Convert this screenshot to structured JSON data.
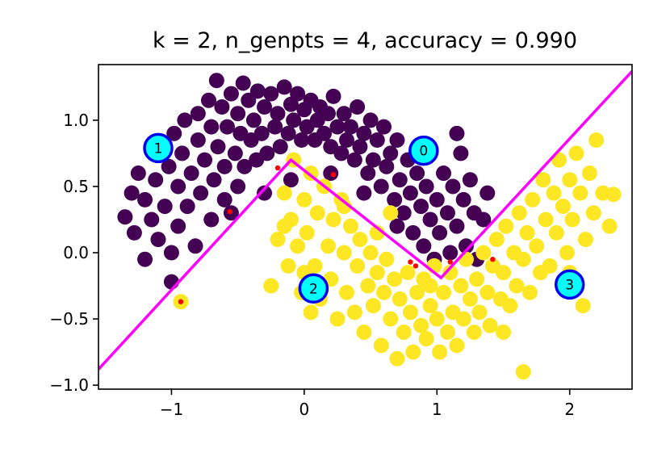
{
  "chart_data": {
    "type": "scatter",
    "title": "k = 2, n_genpts = 4, accuracy = 0.990",
    "xlabel": "",
    "ylabel": "",
    "xlim": [
      -1.55,
      2.47
    ],
    "ylim": [
      -1.03,
      1.42
    ],
    "xticks": [
      -1,
      0,
      1,
      2
    ],
    "xtick_labels": [
      "−1",
      "0",
      "1",
      "2"
    ],
    "yticks": [
      -1.0,
      -0.5,
      0.0,
      0.5,
      1.0
    ],
    "ytick_labels": [
      "−1.0",
      "−0.5",
      "0.0",
      "0.5",
      "1.0"
    ],
    "grid": false,
    "colors": {
      "class0": "#440154",
      "class1": "#fde725",
      "boundary": "#ff00ff",
      "generator_fill": "#00ffff",
      "generator_edge": "#0000ee",
      "misclassified": "#ff0000"
    },
    "classes": [
      {
        "name": "0",
        "color": "#440154",
        "points": [
          [
            -1.35,
            0.27
          ],
          [
            -1.3,
            0.45
          ],
          [
            -1.28,
            0.15
          ],
          [
            -1.25,
            0.6
          ],
          [
            -1.2,
            0.4
          ],
          [
            -1.2,
            -0.05
          ],
          [
            -1.15,
            0.25
          ],
          [
            -1.12,
            0.55
          ],
          [
            -1.1,
            0.1
          ],
          [
            -1.08,
            0.8
          ],
          [
            -1.05,
            0.35
          ],
          [
            -1.02,
            0.65
          ],
          [
            -1.0,
            0.0
          ],
          [
            -1.0,
            -0.22
          ],
          [
            -0.98,
            0.9
          ],
          [
            -0.95,
            0.5
          ],
          [
            -0.95,
            0.2
          ],
          [
            -0.92,
            0.75
          ],
          [
            -0.9,
            1.0
          ],
          [
            -0.88,
            0.35
          ],
          [
            -0.85,
            0.6
          ],
          [
            -0.82,
            0.05
          ],
          [
            -0.8,
            0.85
          ],
          [
            -0.8,
            1.05
          ],
          [
            -0.78,
            0.45
          ],
          [
            -0.75,
            0.7
          ],
          [
            -0.72,
            1.15
          ],
          [
            -0.7,
            0.25
          ],
          [
            -0.7,
            0.95
          ],
          [
            -0.68,
            0.55
          ],
          [
            -0.66,
            1.3
          ],
          [
            -0.65,
            0.8
          ],
          [
            -0.62,
            1.1
          ],
          [
            -0.6,
            0.4
          ],
          [
            -0.6,
            0.65
          ],
          [
            -0.58,
            0.95
          ],
          [
            -0.55,
            1.2
          ],
          [
            -0.52,
            0.75
          ],
          [
            -0.5,
            1.05
          ],
          [
            -0.5,
            0.5
          ],
          [
            -0.48,
            0.9
          ],
          [
            -0.46,
            1.28
          ],
          [
            -0.45,
            0.65
          ],
          [
            -0.42,
            1.15
          ],
          [
            -0.4,
            0.85
          ],
          [
            -0.38,
            1.0
          ],
          [
            -0.36,
            0.7
          ],
          [
            -0.35,
            1.22
          ],
          [
            -0.32,
            0.9
          ],
          [
            -0.3,
            1.1
          ],
          [
            -0.28,
            0.75
          ],
          [
            -0.25,
            1.2
          ],
          [
            -0.22,
            0.95
          ],
          [
            -0.2,
            1.05
          ],
          [
            -0.18,
            0.8
          ],
          [
            -0.15,
            1.25
          ],
          [
            -0.12,
            0.9
          ],
          [
            -0.1,
            1.12
          ],
          [
            -0.08,
            1.0
          ],
          [
            -0.05,
            1.2
          ],
          [
            -0.02,
            0.85
          ],
          [
            0.0,
            1.08
          ],
          [
            0.02,
            0.95
          ],
          [
            0.05,
            1.15
          ],
          [
            0.08,
            0.85
          ],
          [
            0.1,
            1.0
          ],
          [
            0.12,
            1.1
          ],
          [
            0.15,
            0.9
          ],
          [
            0.18,
            1.05
          ],
          [
            0.2,
            0.8
          ],
          [
            0.22,
            1.18
          ],
          [
            0.25,
            0.95
          ],
          [
            0.28,
            0.75
          ],
          [
            0.3,
            1.05
          ],
          [
            0.32,
            0.85
          ],
          [
            0.35,
            0.95
          ],
          [
            0.38,
            0.7
          ],
          [
            0.4,
            1.1
          ],
          [
            0.42,
            0.8
          ],
          [
            0.45,
            0.9
          ],
          [
            0.48,
            0.6
          ],
          [
            0.5,
            1.0
          ],
          [
            0.52,
            0.7
          ],
          [
            0.55,
            0.85
          ],
          [
            0.58,
            0.5
          ],
          [
            0.6,
            0.95
          ],
          [
            0.62,
            0.65
          ],
          [
            0.65,
            0.75
          ],
          [
            0.68,
            0.4
          ],
          [
            0.7,
            0.85
          ],
          [
            0.72,
            0.55
          ],
          [
            0.75,
            0.3
          ],
          [
            0.78,
            0.7
          ],
          [
            0.8,
            0.45
          ],
          [
            0.82,
            0.15
          ],
          [
            0.85,
            0.6
          ],
          [
            0.88,
            0.35
          ],
          [
            0.9,
            0.05
          ],
          [
            0.92,
            0.5
          ],
          [
            0.95,
            0.25
          ],
          [
            0.98,
            -0.05
          ],
          [
            1.0,
            0.4
          ],
          [
            1.02,
            0.15
          ],
          [
            1.05,
            0.6
          ],
          [
            1.08,
            0.3
          ],
          [
            1.1,
            0.0
          ],
          [
            1.12,
            0.5
          ],
          [
            1.15,
            0.2
          ],
          [
            1.18,
            0.75
          ],
          [
            1.2,
            0.4
          ],
          [
            1.22,
            0.05
          ],
          [
            1.25,
            0.55
          ],
          [
            1.28,
            0.3
          ],
          [
            1.3,
            -0.05
          ],
          [
            1.35,
            0.25
          ],
          [
            1.38,
            0.45
          ],
          [
            -0.1,
            0.55
          ],
          [
            0.2,
            0.6
          ],
          [
            0.45,
            0.45
          ],
          [
            -0.3,
            0.45
          ],
          [
            -0.55,
            0.3
          ],
          [
            0.7,
            0.2
          ],
          [
            1.15,
            0.9
          ]
        ]
      },
      {
        "name": "1",
        "color": "#fde725",
        "points": [
          [
            -0.93,
            -0.37
          ],
          [
            -0.25,
            -0.25
          ],
          [
            -0.2,
            0.1
          ],
          [
            -0.15,
            0.45
          ],
          [
            -0.12,
            -0.1
          ],
          [
            -0.1,
            0.25
          ],
          [
            -0.08,
            0.7
          ],
          [
            -0.05,
            0.05
          ],
          [
            -0.02,
            -0.3
          ],
          [
            0.0,
            0.4
          ],
          [
            0.02,
            0.15
          ],
          [
            0.05,
            -0.45
          ],
          [
            0.05,
            0.6
          ],
          [
            0.08,
            -0.1
          ],
          [
            0.1,
            0.3
          ],
          [
            0.12,
            -0.35
          ],
          [
            0.15,
            0.5
          ],
          [
            0.18,
            0.05
          ],
          [
            0.2,
            -0.2
          ],
          [
            0.22,
            0.25
          ],
          [
            0.25,
            -0.5
          ],
          [
            0.28,
            0.4
          ],
          [
            0.3,
            0.0
          ],
          [
            0.32,
            -0.3
          ],
          [
            0.35,
            0.2
          ],
          [
            0.38,
            -0.45
          ],
          [
            0.4,
            -0.1
          ],
          [
            0.42,
            0.1
          ],
          [
            0.45,
            -0.6
          ],
          [
            0.48,
            -0.25
          ],
          [
            0.5,
            0.0
          ],
          [
            0.52,
            -0.4
          ],
          [
            0.55,
            -0.15
          ],
          [
            0.58,
            -0.7
          ],
          [
            0.6,
            -0.3
          ],
          [
            0.62,
            -0.05
          ],
          [
            0.65,
            -0.5
          ],
          [
            0.68,
            -0.2
          ],
          [
            0.7,
            -0.8
          ],
          [
            0.72,
            -0.35
          ],
          [
            0.75,
            -0.6
          ],
          [
            0.78,
            -0.15
          ],
          [
            0.8,
            -0.45
          ],
          [
            0.82,
            -0.75
          ],
          [
            0.85,
            -0.3
          ],
          [
            0.88,
            -0.55
          ],
          [
            0.9,
            -0.2
          ],
          [
            0.92,
            -0.65
          ],
          [
            0.95,
            -0.4
          ],
          [
            0.98,
            -0.1
          ],
          [
            1.0,
            -0.5
          ],
          [
            1.02,
            -0.75
          ],
          [
            1.05,
            -0.3
          ],
          [
            1.08,
            -0.6
          ],
          [
            1.1,
            -0.15
          ],
          [
            1.12,
            -0.45
          ],
          [
            1.15,
            -0.7
          ],
          [
            1.18,
            -0.25
          ],
          [
            1.2,
            -0.5
          ],
          [
            1.22,
            -0.05
          ],
          [
            1.25,
            -0.35
          ],
          [
            1.28,
            -0.6
          ],
          [
            1.3,
            -0.2
          ],
          [
            1.32,
            -0.45
          ],
          [
            1.35,
            0.0
          ],
          [
            1.38,
            -0.3
          ],
          [
            1.4,
            -0.55
          ],
          [
            1.42,
            -0.1
          ],
          [
            1.45,
            0.1
          ],
          [
            1.48,
            -0.35
          ],
          [
            1.5,
            -0.15
          ],
          [
            1.52,
            0.2
          ],
          [
            1.55,
            -0.4
          ],
          [
            1.58,
            0.0
          ],
          [
            1.6,
            -0.25
          ],
          [
            1.62,
            0.3
          ],
          [
            1.65,
            -0.05
          ],
          [
            1.65,
            -0.9
          ],
          [
            1.68,
            0.15
          ],
          [
            1.7,
            -0.3
          ],
          [
            1.72,
            0.4
          ],
          [
            1.75,
            0.05
          ],
          [
            1.78,
            -0.15
          ],
          [
            1.8,
            0.55
          ],
          [
            1.82,
            0.25
          ],
          [
            1.85,
            -0.1
          ],
          [
            1.88,
            0.45
          ],
          [
            1.9,
            0.15
          ],
          [
            1.92,
            0.7
          ],
          [
            1.95,
            0.35
          ],
          [
            1.98,
            0.0
          ],
          [
            2.0,
            0.55
          ],
          [
            2.02,
            0.25
          ],
          [
            2.05,
            0.75
          ],
          [
            2.08,
            0.45
          ],
          [
            2.1,
            -0.4
          ],
          [
            2.12,
            0.1
          ],
          [
            2.15,
            0.6
          ],
          [
            2.18,
            0.3
          ],
          [
            2.2,
            0.85
          ],
          [
            2.25,
            0.45
          ],
          [
            2.3,
            0.2
          ],
          [
            2.33,
            0.44
          ],
          [
            0.0,
            -0.15
          ],
          [
            -0.15,
            0.2
          ],
          [
            0.3,
            0.35
          ],
          [
            0.55,
            0.15
          ],
          [
            1.5,
            -0.6
          ],
          [
            2.0,
            -0.15
          ],
          [
            0.65,
            0.3
          ],
          [
            0.95,
            -0.25
          ]
        ]
      }
    ],
    "generators": [
      {
        "label": "0",
        "x": 0.9,
        "y": 0.77
      },
      {
        "label": "1",
        "x": -1.1,
        "y": 0.79
      },
      {
        "label": "2",
        "x": 0.07,
        "y": -0.27
      },
      {
        "label": "3",
        "x": 2.0,
        "y": -0.24
      }
    ],
    "boundary": [
      [
        -1.55,
        -0.88
      ],
      [
        -0.1,
        0.7
      ],
      [
        1.03,
        -0.19
      ],
      [
        2.47,
        1.37
      ]
    ],
    "misclassified": [
      [
        -0.93,
        -0.37
      ],
      [
        -0.56,
        0.31
      ],
      [
        -0.2,
        0.64
      ],
      [
        0.22,
        0.59
      ],
      [
        0.8,
        -0.07
      ],
      [
        0.84,
        -0.1
      ],
      [
        1.1,
        -0.07
      ],
      [
        1.42,
        -0.05
      ]
    ]
  }
}
